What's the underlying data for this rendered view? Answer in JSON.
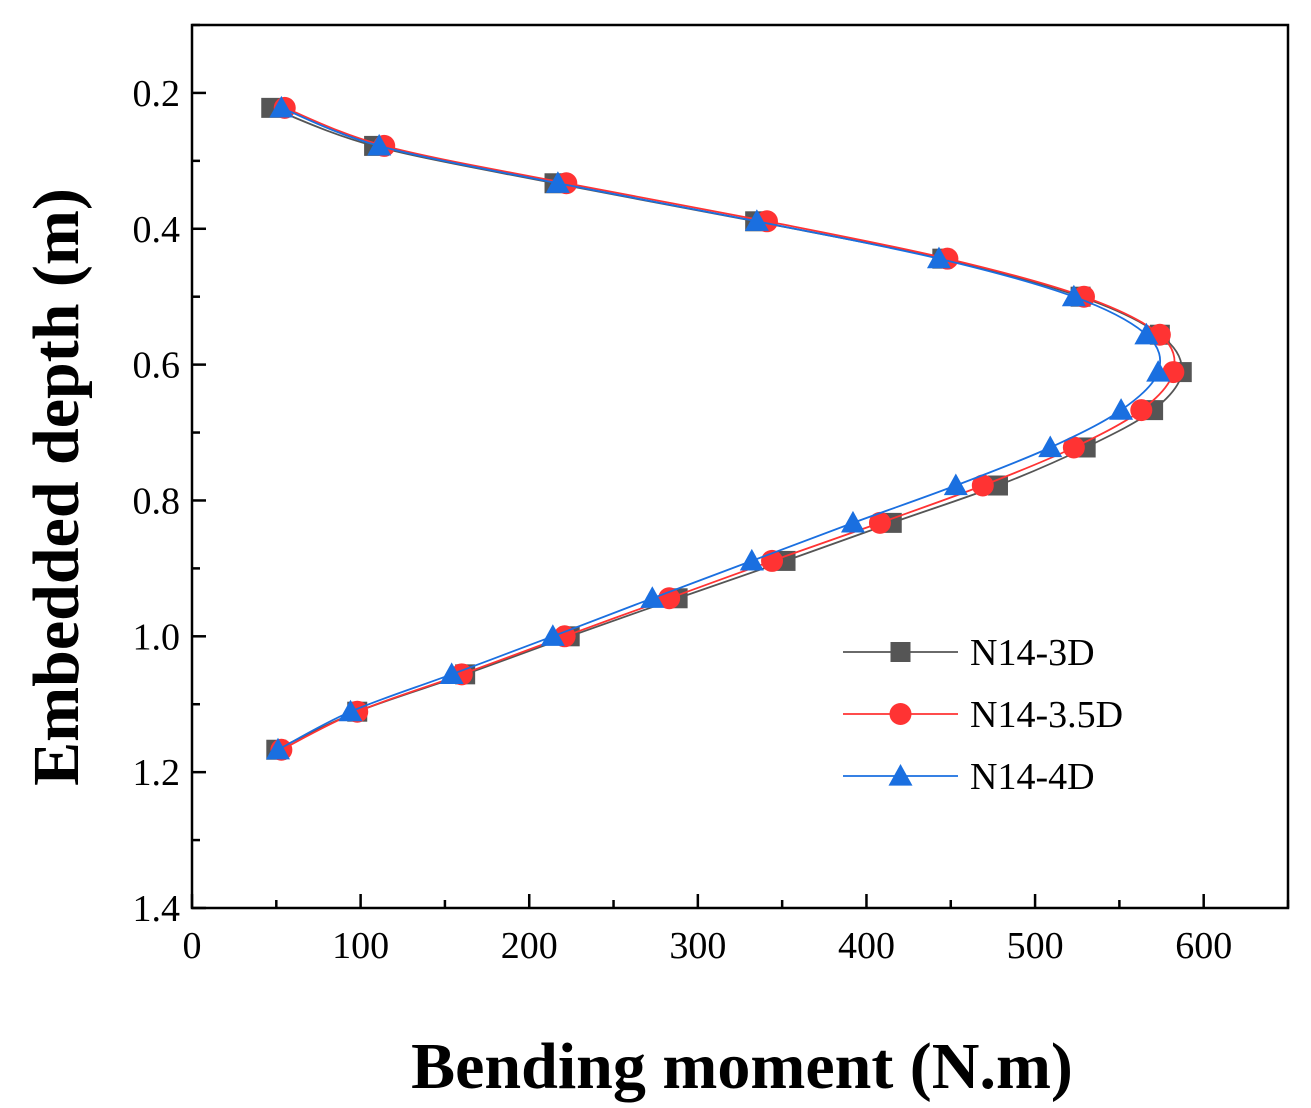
{
  "chart_data": {
    "type": "line",
    "title": "",
    "xlabel": "Bending moment (N.m)",
    "ylabel": "Embedded depth (m)",
    "xlim": [
      0,
      650
    ],
    "ylim": [
      1.4,
      0.1
    ],
    "y_inverted": true,
    "grid": false,
    "legend_position": "bottom-right",
    "x_ticks": [
      0,
      100,
      200,
      300,
      400,
      500,
      600
    ],
    "x_tick_labels": [
      "0",
      "100",
      "200",
      "300",
      "400",
      "500",
      "600"
    ],
    "y_ticks": [
      0.2,
      0.4,
      0.6,
      0.8,
      1.0,
      1.2,
      1.4
    ],
    "y_tick_labels": [
      "0.2",
      "0.4",
      "0.6",
      "0.8",
      "1.0",
      "1.2",
      "1.4"
    ],
    "series": [
      {
        "name": "N14-3D",
        "color": "#555555",
        "marker": "square",
        "points": [
          [
            47,
            0.222
          ],
          [
            108,
            0.278
          ],
          [
            215,
            0.333
          ],
          [
            334,
            0.389
          ],
          [
            445,
            0.444
          ],
          [
            527,
            0.5
          ],
          [
            574,
            0.556
          ],
          [
            587,
            0.611
          ],
          [
            570,
            0.667
          ],
          [
            530,
            0.722
          ],
          [
            478,
            0.778
          ],
          [
            415,
            0.833
          ],
          [
            352,
            0.889
          ],
          [
            288,
            0.944
          ],
          [
            224,
            1.0
          ],
          [
            162,
            1.056
          ],
          [
            98,
            1.111
          ],
          [
            50,
            1.167
          ]
        ]
      },
      {
        "name": "N14-3.5D",
        "color": "#ff3333",
        "marker": "circle",
        "points": [
          [
            55,
            0.222
          ],
          [
            114,
            0.278
          ],
          [
            222,
            0.333
          ],
          [
            341,
            0.389
          ],
          [
            448,
            0.444
          ],
          [
            529,
            0.5
          ],
          [
            574,
            0.556
          ],
          [
            582,
            0.611
          ],
          [
            563,
            0.667
          ],
          [
            523,
            0.722
          ],
          [
            469,
            0.778
          ],
          [
            408,
            0.833
          ],
          [
            344,
            0.889
          ],
          [
            283,
            0.944
          ],
          [
            221,
            1.0
          ],
          [
            160,
            1.056
          ],
          [
            98,
            1.111
          ],
          [
            53,
            1.167
          ]
        ]
      },
      {
        "name": "N14-4D",
        "color": "#1a6fe0",
        "marker": "triangle",
        "points": [
          [
            53,
            0.222
          ],
          [
            111,
            0.278
          ],
          [
            217,
            0.333
          ],
          [
            335,
            0.389
          ],
          [
            443,
            0.444
          ],
          [
            523,
            0.5
          ],
          [
            566,
            0.556
          ],
          [
            573,
            0.611
          ],
          [
            551,
            0.667
          ],
          [
            509,
            0.722
          ],
          [
            453,
            0.778
          ],
          [
            392,
            0.833
          ],
          [
            332,
            0.889
          ],
          [
            273,
            0.944
          ],
          [
            214,
            1.0
          ],
          [
            154,
            1.056
          ],
          [
            94,
            1.111
          ],
          [
            51,
            1.167
          ]
        ]
      }
    ]
  }
}
